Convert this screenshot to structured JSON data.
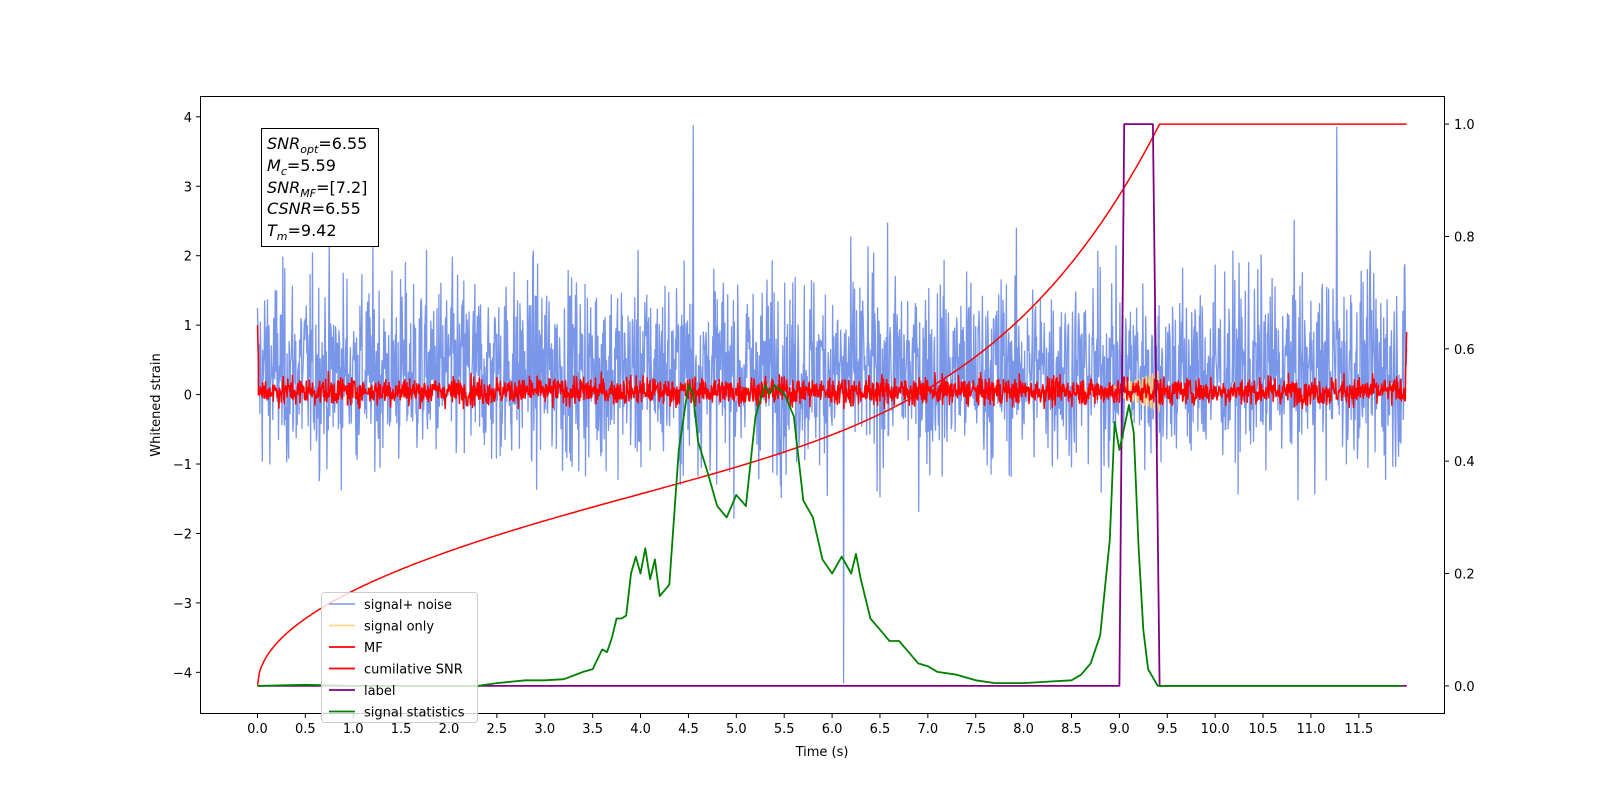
{
  "chart_data": {
    "type": "line",
    "xlabel": "Time (s)",
    "ylabel": "Whitened strain",
    "xlim": [
      -0.6,
      12.4
    ],
    "ylim": [
      -4.6,
      4.3
    ],
    "ylim_right": [
      -0.05,
      1.05
    ],
    "x_ticks": [
      "0.0",
      "0.5",
      "1.0",
      "1.5",
      "2.0",
      "2.5",
      "3.0",
      "3.5",
      "4.0",
      "4.5",
      "5.0",
      "5.5",
      "6.0",
      "6.5",
      "7.0",
      "7.5",
      "8.0",
      "8.5",
      "9.0",
      "9.5",
      "10.0",
      "10.5",
      "11.0",
      "11.5"
    ],
    "y_ticks": [
      "4",
      "3",
      "2",
      "1",
      "0",
      "−1",
      "−2",
      "−3",
      "−4"
    ],
    "y_ticks_right": [
      "1.0",
      "0.8",
      "0.6",
      "0.4",
      "0.2",
      "0.0"
    ],
    "annotation": {
      "snr_opt": {
        "main": "SNR",
        "sub": "opt",
        "value": "=6.55"
      },
      "mc": {
        "main": "M",
        "sub": "c",
        "value": "=5.59"
      },
      "snr_mf": {
        "main": "SNR",
        "sub": "MF",
        "value": "=[7.2]"
      },
      "csnr": {
        "main": "CSNR",
        "sub": "",
        "value": "=6.55"
      },
      "tm": {
        "main": "T",
        "sub": "m",
        "value": "=9.42"
      }
    },
    "legend": {
      "position": "lower left",
      "entries": [
        {
          "label": "signal+ noise",
          "color": "#7a96e8"
        },
        {
          "label": "signal only",
          "color": "#ffcc77"
        },
        {
          "label": "MF",
          "color": "#ff0000"
        },
        {
          "label": "cumilative SNR",
          "color": "#ff0000"
        },
        {
          "label": "label",
          "color": "#800080"
        },
        {
          "label": "signal statistics",
          "color": "#008000"
        }
      ]
    },
    "series": [
      {
        "name": "signal+ noise",
        "axis": "left",
        "color": "#7a96e8",
        "x_range": [
          0.0,
          12.0
        ],
        "mean": 0.35,
        "envelope_upper": 2.0,
        "envelope_lower": -1.6,
        "max": 3.87,
        "min": -4.15
      },
      {
        "name": "signal only",
        "axis": "left",
        "color": "#ffcc77",
        "chirp_start": 8.5,
        "chirp_end": 9.42,
        "max_amplitude": 0.3
      },
      {
        "name": "MF",
        "axis": "left",
        "color": "#ff0000",
        "x_range": [
          0.0,
          12.0
        ],
        "band_upper": 0.25,
        "band_lower": -0.15,
        "start_value": 1.0,
        "end_value": 0.9
      },
      {
        "name": "cumilative SNR",
        "axis": "right",
        "color": "#ff0000",
        "x": [
          0.0,
          0.3,
          1.0,
          2.0,
          3.0,
          4.0,
          5.0,
          6.0,
          7.0,
          7.5,
          8.0,
          8.5,
          9.0,
          9.2,
          9.3,
          9.42,
          12.0
        ],
        "y": [
          0.0,
          0.05,
          0.12,
          0.2,
          0.26,
          0.31,
          0.355,
          0.405,
          0.465,
          0.505,
          0.555,
          0.62,
          0.72,
          0.79,
          0.84,
          1.0,
          1.0
        ]
      },
      {
        "name": "label",
        "axis": "right",
        "color": "#800080",
        "x": [
          0.0,
          9.0,
          9.05,
          9.35,
          9.42,
          12.0
        ],
        "y": [
          0.0,
          0.0,
          1.0,
          1.0,
          0.0,
          0.0
        ]
      },
      {
        "name": "signal statistics",
        "axis": "right",
        "color": "#008000",
        "x": [
          0.0,
          0.5,
          1.0,
          1.5,
          2.0,
          2.3,
          2.5,
          2.8,
          3.0,
          3.2,
          3.4,
          3.5,
          3.6,
          3.65,
          3.7,
          3.75,
          3.8,
          3.85,
          3.9,
          3.95,
          4.0,
          4.05,
          4.1,
          4.15,
          4.2,
          4.25,
          4.3,
          4.4,
          4.5,
          4.55,
          4.6,
          4.7,
          4.8,
          4.9,
          5.0,
          5.1,
          5.2,
          5.3,
          5.35,
          5.4,
          5.5,
          5.6,
          5.7,
          5.8,
          5.9,
          6.0,
          6.1,
          6.2,
          6.25,
          6.3,
          6.4,
          6.5,
          6.6,
          6.7,
          6.8,
          6.9,
          7.0,
          7.1,
          7.3,
          7.5,
          7.7,
          8.0,
          8.3,
          8.5,
          8.6,
          8.7,
          8.8,
          8.9,
          8.95,
          9.0,
          9.1,
          9.15,
          9.2,
          9.25,
          9.3,
          9.4,
          9.5,
          10.0,
          11.0,
          11.95
        ],
        "y": [
          0.0,
          0.002,
          0.0,
          0.0,
          0.0,
          0.0,
          0.005,
          0.01,
          0.01,
          0.012,
          0.025,
          0.03,
          0.065,
          0.06,
          0.085,
          0.12,
          0.12,
          0.125,
          0.2,
          0.23,
          0.2,
          0.245,
          0.19,
          0.225,
          0.16,
          0.17,
          0.18,
          0.42,
          0.535,
          0.52,
          0.435,
          0.38,
          0.32,
          0.3,
          0.34,
          0.32,
          0.48,
          0.535,
          0.52,
          0.535,
          0.52,
          0.48,
          0.33,
          0.3,
          0.225,
          0.2,
          0.23,
          0.2,
          0.235,
          0.19,
          0.12,
          0.1,
          0.08,
          0.08,
          0.06,
          0.04,
          0.035,
          0.025,
          0.02,
          0.01,
          0.005,
          0.005,
          0.008,
          0.01,
          0.02,
          0.04,
          0.09,
          0.26,
          0.47,
          0.42,
          0.5,
          0.45,
          0.25,
          0.1,
          0.03,
          0.0,
          0.0,
          0.0,
          0.0,
          0.0
        ]
      }
    ]
  }
}
